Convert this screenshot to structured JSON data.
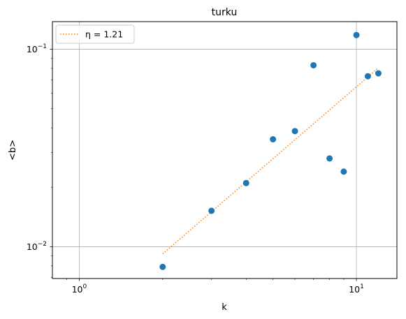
{
  "chart_data": {
    "type": "scatter",
    "title": "turku",
    "xlabel": "k",
    "ylabel": "<b>",
    "x_scale": "log",
    "y_scale": "log",
    "xlim": [
      0.8,
      14
    ],
    "ylim": [
      0.0069,
      0.138
    ],
    "grid": true,
    "legend_position": "top-left",
    "x_ticks": [
      {
        "value": 1,
        "base": "10",
        "exp": "0"
      },
      {
        "value": 10,
        "base": "10",
        "exp": "1"
      }
    ],
    "y_ticks": [
      {
        "value": 0.01,
        "base": "10",
        "exp": "−2"
      },
      {
        "value": 0.1,
        "base": "10",
        "exp": "−1"
      }
    ],
    "points": {
      "color": "#1f77b4",
      "x": [
        2,
        3,
        4,
        5,
        6,
        7,
        8,
        9,
        10,
        11,
        12
      ],
      "y": [
        0.0079,
        0.0152,
        0.021,
        0.035,
        0.0385,
        0.083,
        0.028,
        0.024,
        0.118,
        0.073,
        0.0755
      ]
    },
    "fit_line": {
      "name": "η = 1.21",
      "color": "#ff7f0e",
      "style": "dotted",
      "x": [
        2,
        12
      ],
      "y": [
        0.0092,
        0.0805
      ]
    }
  }
}
